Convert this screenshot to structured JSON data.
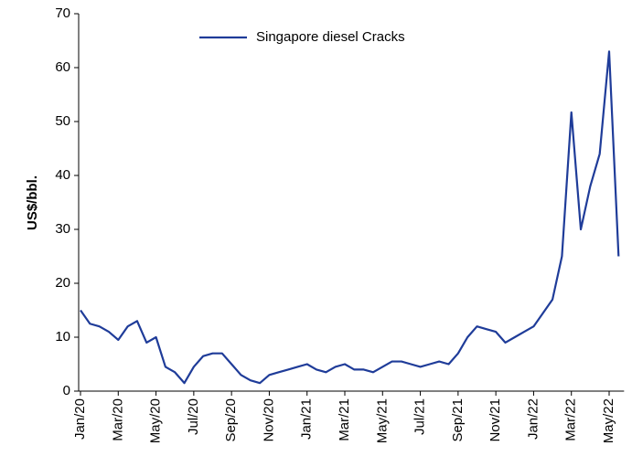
{
  "chart_data": {
    "type": "line",
    "y_label": "US$/bbl.",
    "categories": [
      "Jan/20",
      null,
      null,
      null,
      "Mar/20",
      null,
      null,
      null,
      "May/20",
      null,
      null,
      null,
      "Jul/20",
      null,
      null,
      null,
      "Sep/20",
      null,
      null,
      null,
      "Nov/20",
      null,
      null,
      null,
      "Jan/21",
      null,
      null,
      null,
      "Mar/21",
      null,
      null,
      null,
      "May/21",
      null,
      null,
      null,
      "Jul/21",
      null,
      null,
      null,
      "Sep/21",
      null,
      null,
      null,
      "Nov/21",
      null,
      null,
      null,
      "Jan/22",
      null,
      null,
      null,
      "Mar/22",
      null,
      null,
      null,
      "May/22",
      null
    ],
    "series": [
      {
        "name": "Singapore diesel Cracks",
        "color": "#1f3c99",
        "values": [
          15,
          12.5,
          12,
          11,
          9.5,
          12,
          13,
          9,
          10,
          4.5,
          3.5,
          1.5,
          4.5,
          6.5,
          7,
          7,
          5,
          3,
          2,
          1.5,
          3,
          3.5,
          4,
          4.5,
          5,
          4,
          3.5,
          4.5,
          5,
          4,
          4,
          3.5,
          4.5,
          5.5,
          5.5,
          5,
          4.5,
          5,
          5.5,
          5,
          7,
          10,
          12,
          11.5,
          11,
          9,
          10,
          11,
          12,
          14.5,
          17,
          25,
          51.7,
          30,
          38,
          44,
          63,
          25
        ]
      }
    ],
    "ylim": [
      0,
      70
    ],
    "yticks": [
      0,
      10,
      20,
      30,
      40,
      50,
      60,
      70
    ],
    "legend": "top"
  }
}
